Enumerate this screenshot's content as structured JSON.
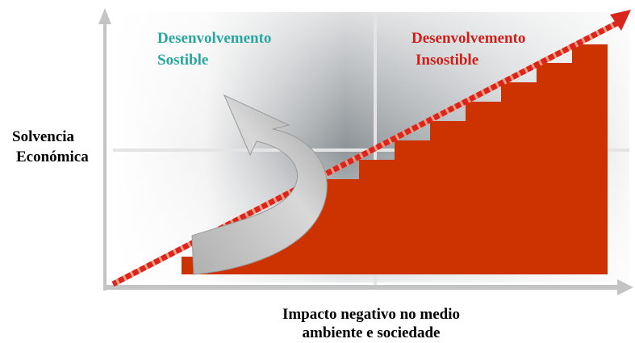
{
  "quadrants": [
    {
      "title_lines": [
        "Desenvolvemento",
        "Sostible"
      ]
    },
    {
      "title_lines": [
        "Desenvolvemento",
        "Insostible"
      ]
    }
  ],
  "y_axis_label": [
    "Solvencia",
    "Económica"
  ],
  "x_axis_label": [
    "Impacto negativo no medio",
    "ambiente e sociedade"
  ]
}
